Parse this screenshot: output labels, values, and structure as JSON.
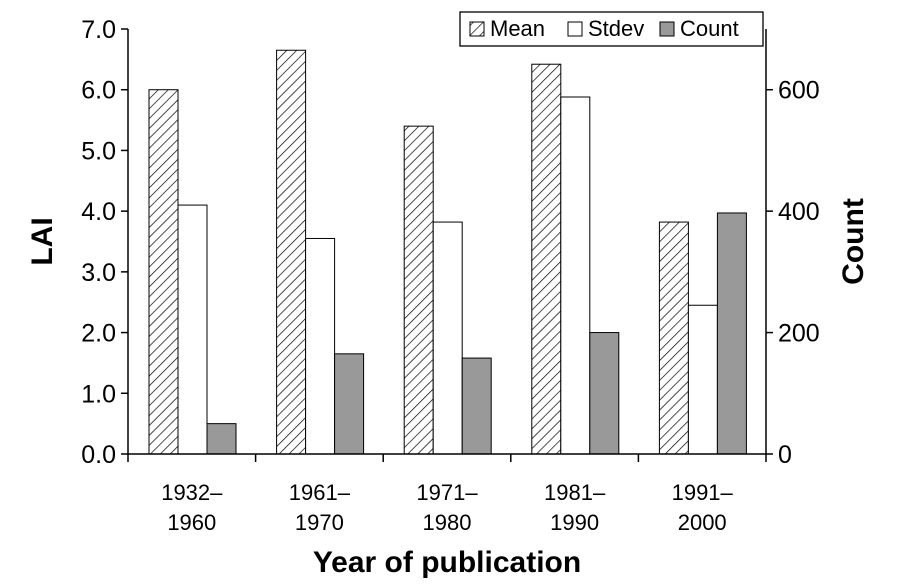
{
  "chart_data": {
    "type": "bar",
    "categories": [
      [
        "1932–",
        "1960"
      ],
      [
        "1961–",
        "1970"
      ],
      [
        "1971–",
        "1980"
      ],
      [
        "1981–",
        "1990"
      ],
      [
        "1991–",
        "2000"
      ]
    ],
    "series": [
      {
        "name": "Mean",
        "axis": "left",
        "fill": "hatched",
        "values": [
          6.0,
          6.65,
          5.4,
          6.42,
          3.82
        ]
      },
      {
        "name": "Stdev",
        "axis": "left",
        "fill": "white",
        "values": [
          4.1,
          3.55,
          3.82,
          5.88,
          2.45
        ]
      },
      {
        "name": "Count",
        "axis": "right",
        "fill": "#999999",
        "values": [
          50,
          165,
          158,
          200,
          397
        ]
      }
    ],
    "xlabel": "Year of publication",
    "ylabel_left": "LAI",
    "ylabel_right": "Count",
    "ylim_left": [
      0,
      7
    ],
    "ylim_right": [
      0,
      700
    ],
    "yticks_left": [
      "0.0",
      "1.0",
      "2.0",
      "3.0",
      "4.0",
      "5.0",
      "6.0",
      "7.0"
    ],
    "yticks_right": [
      "0",
      "200",
      "400",
      "600"
    ],
    "legend_position": "top-right",
    "grid": false
  }
}
